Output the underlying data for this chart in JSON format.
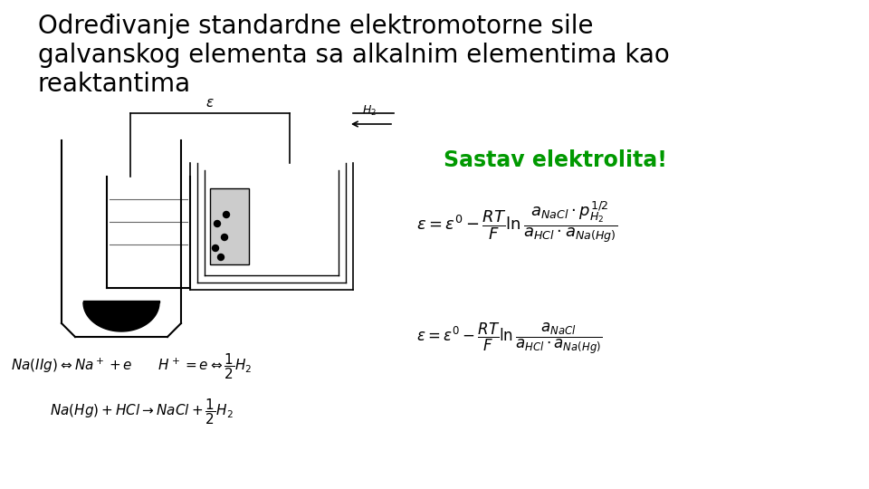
{
  "title_line1": "Određivanje standardne elektromotorne sile",
  "title_line2": "galvanskog elementa sa alkalnim elementima kao",
  "title_line3": "reaktantima",
  "subtitle": "Sastav elektrolita!",
  "subtitle_color": "#009900",
  "bg_color": "#ffffff",
  "title_fontsize": 20,
  "subtitle_fontsize": 17,
  "formula1_fontsize": 13,
  "formula2_fontsize": 12,
  "eq_fontsize": 11
}
